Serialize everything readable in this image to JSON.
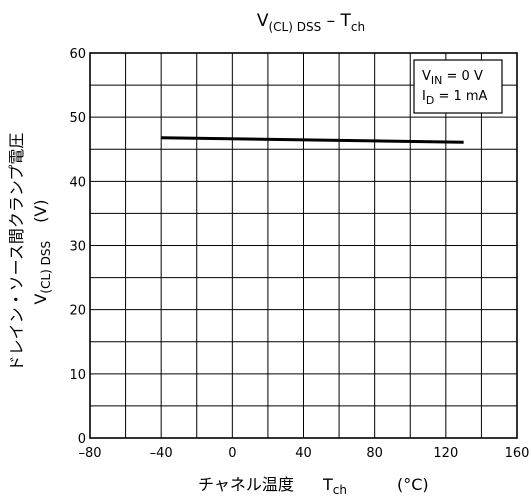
{
  "chart_data": {
    "type": "line",
    "title": {
      "main": "V",
      "main_sub": "(CL) DSS",
      "sep": " – ",
      "tail": "T",
      "tail_sub": "ch"
    },
    "ylabel_ja": "ドレイン・ソース間クランプ電圧",
    "ylabel_symbol": "V",
    "ylabel_symbol_sub": "(CL) DSS",
    "ylabel_unit": "(V)",
    "xlabel_ja": "チャネル温度",
    "xlabel_symbol": "T",
    "xlabel_symbol_sub": "ch",
    "xlabel_unit": "(°C)",
    "xlim": [
      -80,
      160
    ],
    "ylim": [
      0,
      60
    ],
    "x_ticks": [
      -80,
      -40,
      0,
      40,
      80,
      120,
      160
    ],
    "x_tick_labels": [
      "–80",
      "–40",
      "0",
      "40",
      "80",
      "120",
      "160"
    ],
    "y_ticks": [
      0,
      10,
      20,
      30,
      40,
      50,
      60
    ],
    "y_tick_labels": [
      "0",
      "10",
      "20",
      "30",
      "40",
      "50",
      "60"
    ],
    "x_grid_step": 20,
    "y_grid_step": 5,
    "grid": true,
    "legend_position": "top-right",
    "conditions": [
      {
        "sym": "V",
        "sub": "IN",
        "rest": " = 0 V"
      },
      {
        "sym": "I",
        "sub": "D",
        "rest": " = 1 mA"
      }
    ],
    "series": [
      {
        "x": [
          -40,
          130
        ],
        "y": [
          46.8,
          46.1
        ],
        "color": "#000000"
      }
    ]
  }
}
